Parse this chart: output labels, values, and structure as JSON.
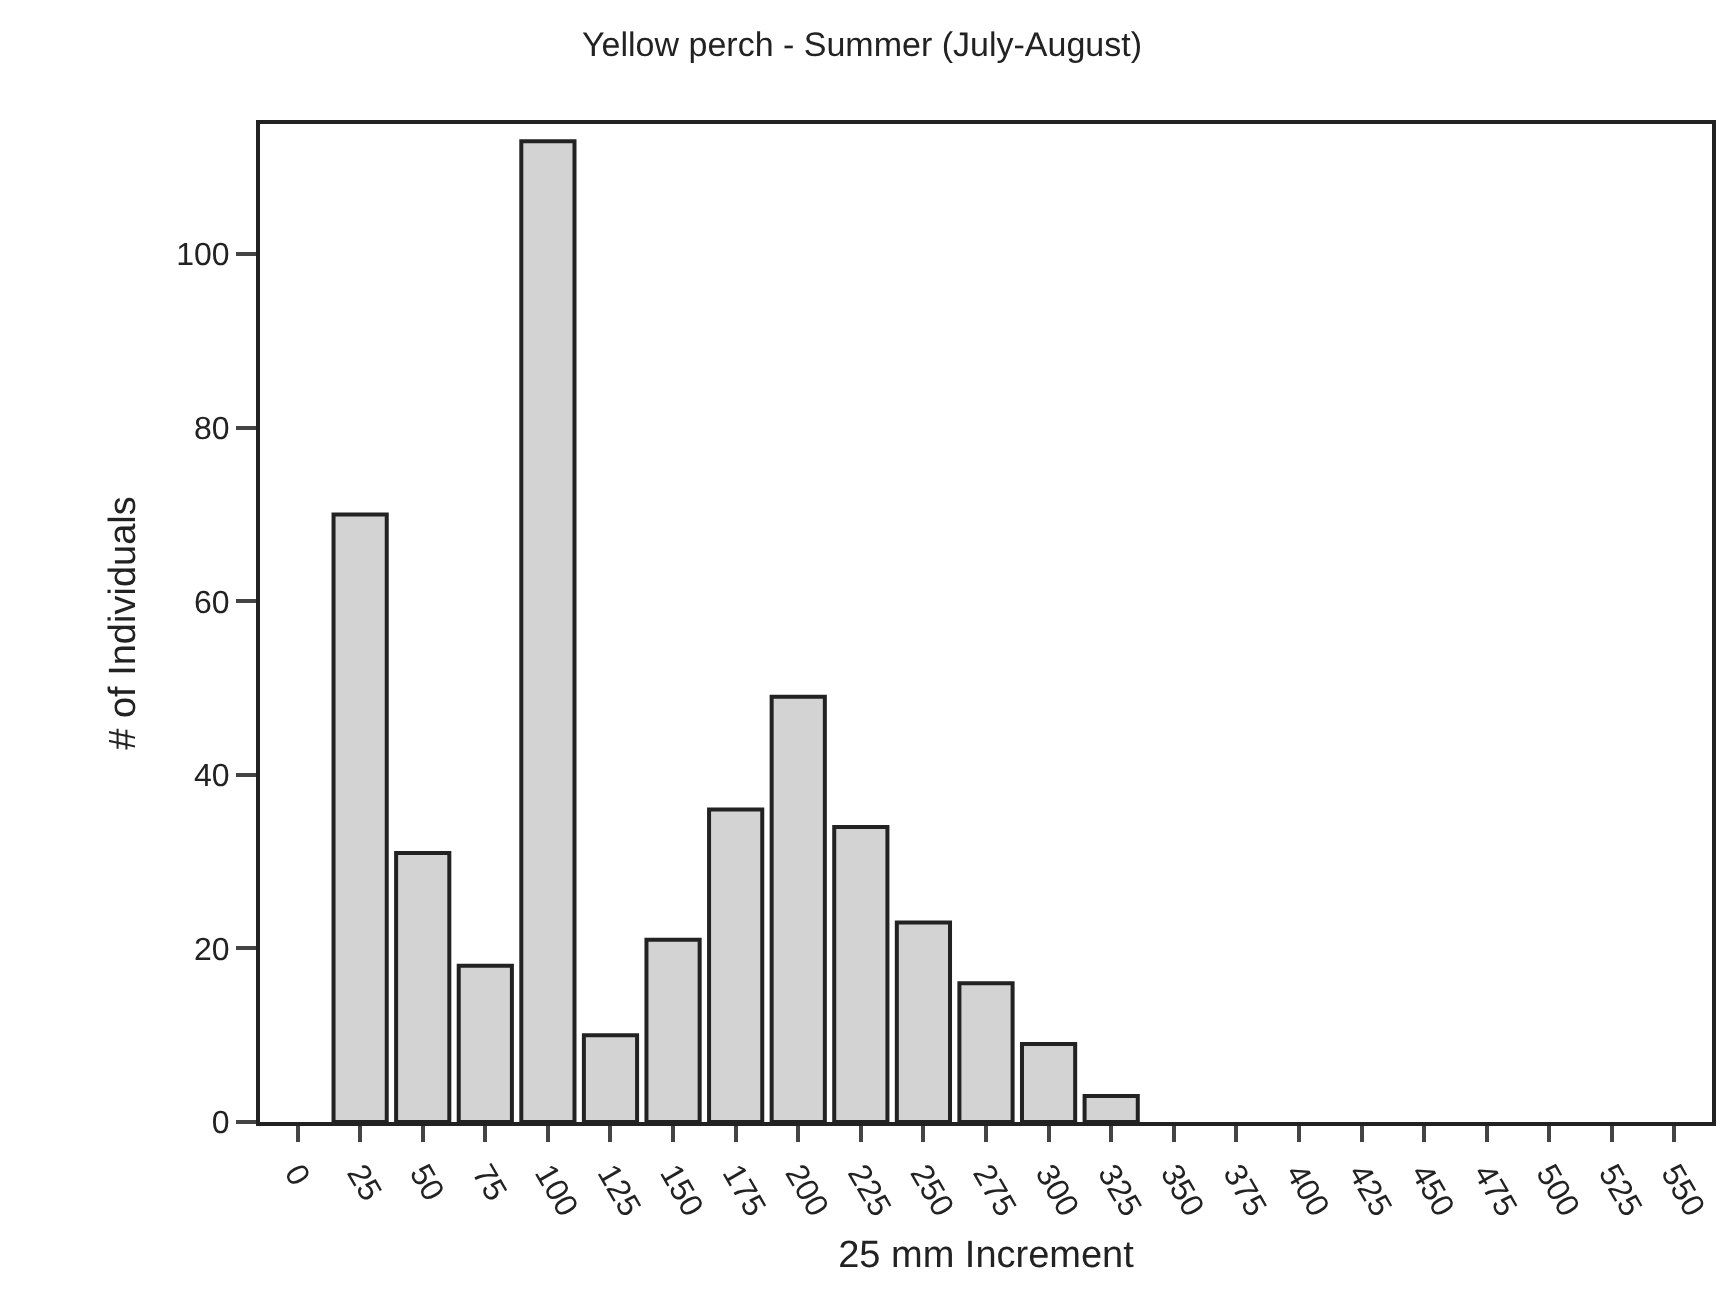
{
  "chart_data": {
    "type": "bar",
    "title": "Yellow perch - Summer (July-August)",
    "xlabel": "25 mm Increment",
    "ylabel": "# of Individuals",
    "categories": [
      "0",
      "25",
      "50",
      "75",
      "100",
      "125",
      "150",
      "175",
      "200",
      "225",
      "250",
      "275",
      "300",
      "325",
      "350",
      "375",
      "400",
      "425",
      "450",
      "475",
      "500",
      "525",
      "550"
    ],
    "values": [
      null,
      70,
      31,
      18,
      113,
      10,
      21,
      36,
      49,
      34,
      23,
      16,
      9,
      3,
      null,
      null,
      null,
      null,
      null,
      null,
      null,
      null,
      null
    ],
    "color": "#d3d3d3",
    "ylim": [
      0,
      115
    ],
    "yticks": [
      0,
      20,
      40,
      60,
      80,
      100
    ]
  }
}
